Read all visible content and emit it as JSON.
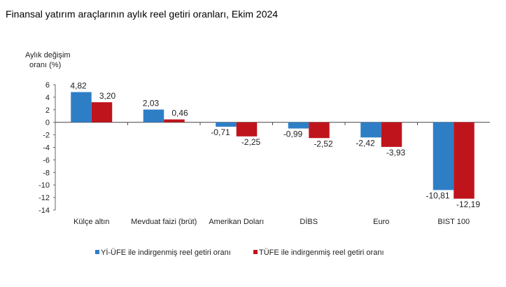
{
  "chart_data": {
    "type": "bar",
    "title": "Finansal yatırım araçlarının aylık reel getiri oranları, Ekim 2024",
    "ylabel": [
      "Aylık değişim",
      "oranı (%)"
    ],
    "xlabel": "",
    "ylim": [
      -14,
      6
    ],
    "yticks": [
      6,
      4,
      2,
      0,
      -2,
      -4,
      -6,
      -8,
      -10,
      -12,
      -14
    ],
    "grid": false,
    "legend_position": "bottom",
    "categories": [
      "Külçe altın",
      "Mevduat faizi (brüt)",
      "Amerikan Doları",
      "DİBS",
      "Euro",
      "BIST 100"
    ],
    "series": [
      {
        "name": "Yİ-ÜFE ile indirgenmiş reel getiri oranı",
        "color": "#2e7ec6",
        "values": [
          4.82,
          2.03,
          -0.71,
          -0.99,
          -2.42,
          -10.81
        ],
        "labels": [
          "4,82",
          "2,03",
          "-0,71",
          "-0,99",
          "-2,42",
          "-10,81"
        ]
      },
      {
        "name": "TÜFE ile indirgenmiş reel getiri oranı",
        "color": "#c0141c",
        "values": [
          3.2,
          0.46,
          -2.25,
          -2.52,
          -3.93,
          -12.19
        ],
        "labels": [
          "3,20",
          "0,46",
          "-2,25",
          "-2,52",
          "-3,93",
          "-12,19"
        ]
      }
    ]
  }
}
